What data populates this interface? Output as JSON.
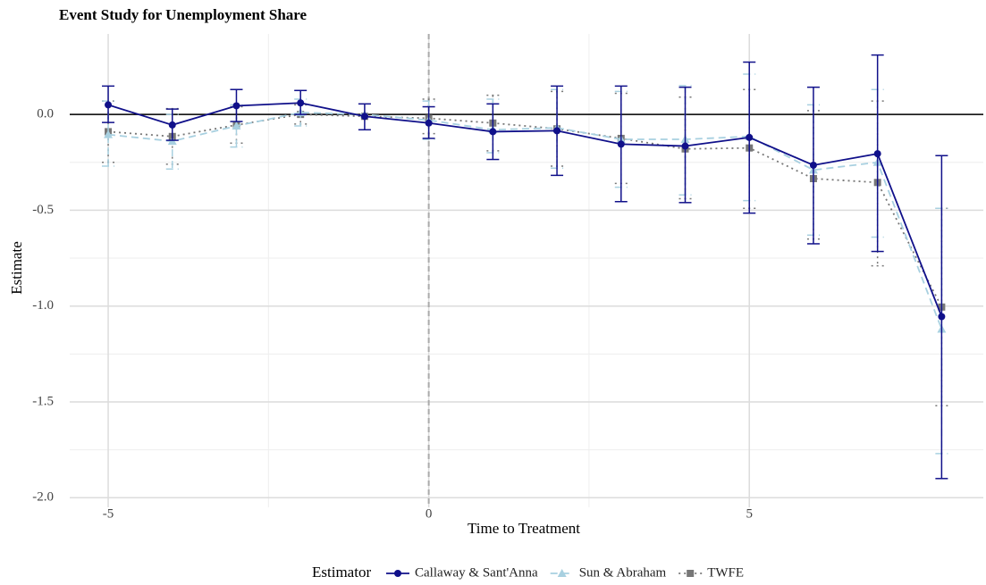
{
  "chart_data": {
    "type": "event-study",
    "title": "Event Study for Unemployment Share",
    "x_label": "Time to Treatment",
    "y_label": "Estimate",
    "legend_title": "Estimator",
    "x": [
      -5,
      -4,
      -3,
      -2,
      -1,
      0,
      1,
      2,
      3,
      4,
      5,
      6,
      7,
      8
    ],
    "xlim": [
      -5.6,
      8.65
    ],
    "ylim": [
      -2.05,
      0.42
    ],
    "xticks": [
      -5,
      0,
      5
    ],
    "yticks": [
      {
        "value": 0,
        "label": "0.0"
      },
      {
        "value": -0.5,
        "label": "-0.5"
      },
      {
        "value": -1,
        "label": "-1.0"
      },
      {
        "value": -1.5,
        "label": "-1.5"
      },
      {
        "value": -2,
        "label": "-2.0"
      }
    ],
    "hline": 0,
    "vline": 0,
    "grid": true,
    "legend_position": "bottom",
    "series": [
      {
        "name": "Callaway & Sant'Anna",
        "color": "#10108a",
        "marker": "circle",
        "dash": "solid",
        "values": [
          0.05,
          -0.055,
          0.045,
          0.06,
          -0.01,
          -0.045,
          -0.09,
          -0.085,
          -0.155,
          -0.165,
          -0.12,
          -0.265,
          -0.205,
          -1.055
        ],
        "lower": [
          -0.042,
          -0.135,
          -0.037,
          0,
          -0.08,
          -0.125,
          -0.235,
          -0.318,
          -0.455,
          -0.46,
          -0.515,
          -0.675,
          -0.715,
          -1.9
        ],
        "upper": [
          0.148,
          0.028,
          0.13,
          0.125,
          0.055,
          0.04,
          0.055,
          0.148,
          0.148,
          0.142,
          0.273,
          0.142,
          0.31,
          -0.215
        ]
      },
      {
        "name": "Sun & Abraham",
        "color": "#a8d0e0",
        "marker": "triangle",
        "dash": "dashed",
        "values": [
          -0.105,
          -0.14,
          -0.06,
          0.01,
          0,
          -0.03,
          -0.08,
          -0.07,
          -0.13,
          -0.13,
          -0.115,
          -0.29,
          -0.25,
          -1.12
        ],
        "lower": [
          -0.27,
          -0.285,
          -0.17,
          -0.06,
          null,
          -0.13,
          -0.2,
          -0.28,
          -0.38,
          -0.42,
          -0.45,
          -0.63,
          -0.64,
          -1.77
        ],
        "upper": [
          0.07,
          0,
          0.05,
          0.08,
          null,
          0.07,
          0.08,
          0.13,
          0.12,
          0.15,
          0.21,
          0.05,
          0.13,
          -0.49
        ]
      },
      {
        "name": "TWFE",
        "color": "#777777",
        "marker": "square",
        "dash": "dotted",
        "values": [
          -0.09,
          -0.115,
          -0.055,
          0,
          -0.01,
          -0.02,
          -0.045,
          -0.075,
          -0.125,
          -0.18,
          -0.175,
          -0.335,
          -0.355,
          -1.005
        ],
        "lower": [
          -0.25,
          -0.26,
          -0.15,
          -0.05,
          null,
          -0.1,
          -0.19,
          -0.27,
          -0.36,
          -0.44,
          -0.49,
          -0.65,
          -0.79,
          -1.52
        ],
        "upper": [
          0.07,
          0.03,
          0.04,
          0.05,
          null,
          0.08,
          0.1,
          0.12,
          0.11,
          0.09,
          0.13,
          0.02,
          0.07,
          -0.49
        ]
      }
    ]
  }
}
